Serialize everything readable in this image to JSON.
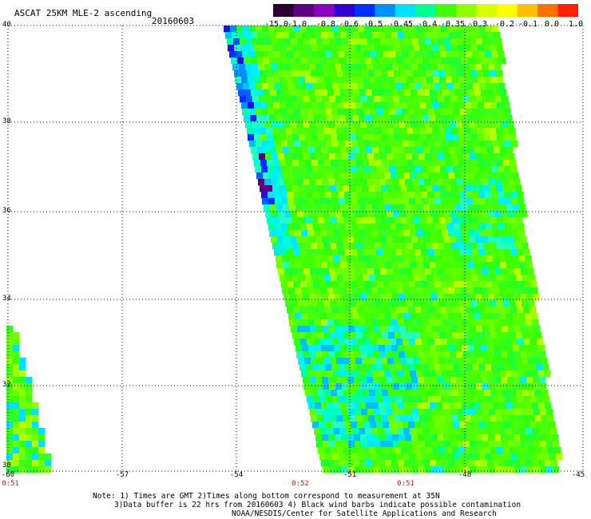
{
  "header": {
    "title": "ASCAT 25KM MLE-2 ascending",
    "date": "20160603"
  },
  "colorbar": {
    "labels": [
      "-15.0",
      "-1.0",
      "-0.8",
      "-0.6",
      "-0.5",
      "-0.45",
      "-0.4",
      "-0.35",
      "-0.3",
      "-0.2",
      "-0.1",
      "0.0",
      "1.0"
    ],
    "colors": [
      "#2a0030",
      "#5a0080",
      "#8a00c0",
      "#3000d0",
      "#0030ff",
      "#0090ff",
      "#00e0ff",
      "#00ff90",
      "#40ff00",
      "#90ff00",
      "#d8ff00",
      "#ffff00",
      "#ffc000",
      "#ff7000",
      "#ff2000"
    ]
  },
  "axes": {
    "lat_labels": [
      "40",
      "38",
      "36",
      "34",
      "32",
      "30"
    ],
    "lon_labels": [
      "-60",
      "-57",
      "-54",
      "-51",
      "-48",
      "-45"
    ],
    "time_labels": [
      "0:51",
      "0:52",
      "0:51"
    ]
  },
  "notes": {
    "line1": "Note: 1) Times are GMT 2)Times along bottom correspond to measurement at 35N",
    "line2": "3)Data buffer is 22 hrs from 20160603 4) Black wind barbs indicate possible contamination",
    "line3": "NOAA/NESDIS/Center for Satellite Applications and Research"
  }
}
